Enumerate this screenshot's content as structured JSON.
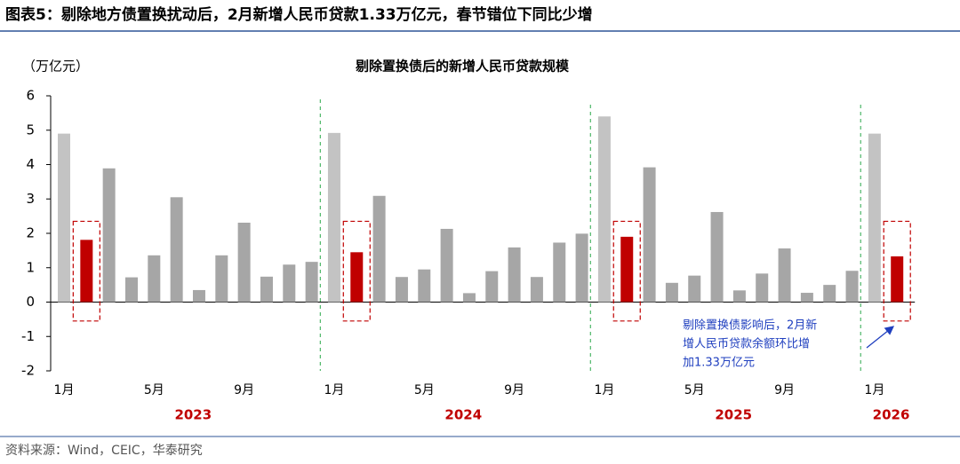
{
  "header": {
    "title": "图表5：剔除地方债置换扰动后，2月新增人民币贷款1.33万亿元，春节错位下同比少增"
  },
  "chart_data": {
    "type": "bar",
    "title": "剔除置换债后的新增人民币贷款规模",
    "y_label": "（万亿元）",
    "categories": [
      "1月",
      null,
      null,
      null,
      "5月",
      null,
      null,
      null,
      "9月",
      null,
      null,
      null,
      "1月",
      null,
      null,
      null,
      "5月",
      null,
      null,
      null,
      "9月",
      null,
      null,
      null,
      "1月",
      null,
      null,
      null,
      "5月",
      null,
      null,
      null,
      "9月",
      null,
      null,
      null,
      "1月",
      null
    ],
    "values": [
      4.9,
      1.81,
      3.89,
      0.72,
      1.36,
      3.05,
      0.35,
      1.36,
      2.31,
      0.74,
      1.09,
      1.17,
      4.92,
      1.45,
      3.09,
      0.73,
      0.95,
      2.13,
      0.26,
      0.9,
      1.59,
      0.73,
      1.73,
      1.99,
      5.4,
      1.9,
      3.92,
      0.56,
      0.77,
      2.62,
      0.34,
      0.83,
      1.56,
      0.27,
      0.5,
      0.91,
      4.9,
      1.33
    ],
    "bar_colors": [
      "#c3c3c3",
      "#c00000",
      "#a6a6a6",
      "#a6a6a6",
      "#a6a6a6",
      "#a6a6a6",
      "#a6a6a6",
      "#a6a6a6",
      "#a6a6a6",
      "#a6a6a6",
      "#a6a6a6",
      "#a6a6a6",
      "#c3c3c3",
      "#c00000",
      "#a6a6a6",
      "#a6a6a6",
      "#a6a6a6",
      "#a6a6a6",
      "#a6a6a6",
      "#a6a6a6",
      "#a6a6a6",
      "#a6a6a6",
      "#a6a6a6",
      "#a6a6a6",
      "#c3c3c3",
      "#c00000",
      "#a6a6a6",
      "#a6a6a6",
      "#a6a6a6",
      "#a6a6a6",
      "#a6a6a6",
      "#a6a6a6",
      "#a6a6a6",
      "#a6a6a6",
      "#a6a6a6",
      "#a6a6a6",
      "#c3c3c3",
      "#c00000"
    ],
    "highlight_color": "#c00000",
    "year_labels": [
      "2023",
      "2024",
      "2025",
      "2026"
    ],
    "ylim": [
      -2,
      6
    ],
    "yticks": [
      -2,
      -1,
      0,
      1,
      2,
      3,
      4,
      5,
      6
    ],
    "annotation": [
      "剔除置换债影响后，2月新",
      "增人民币贷款余额环比增",
      "加1.33万亿元"
    ]
  },
  "source": "资料来源：Wind，CEIC，华泰研究"
}
